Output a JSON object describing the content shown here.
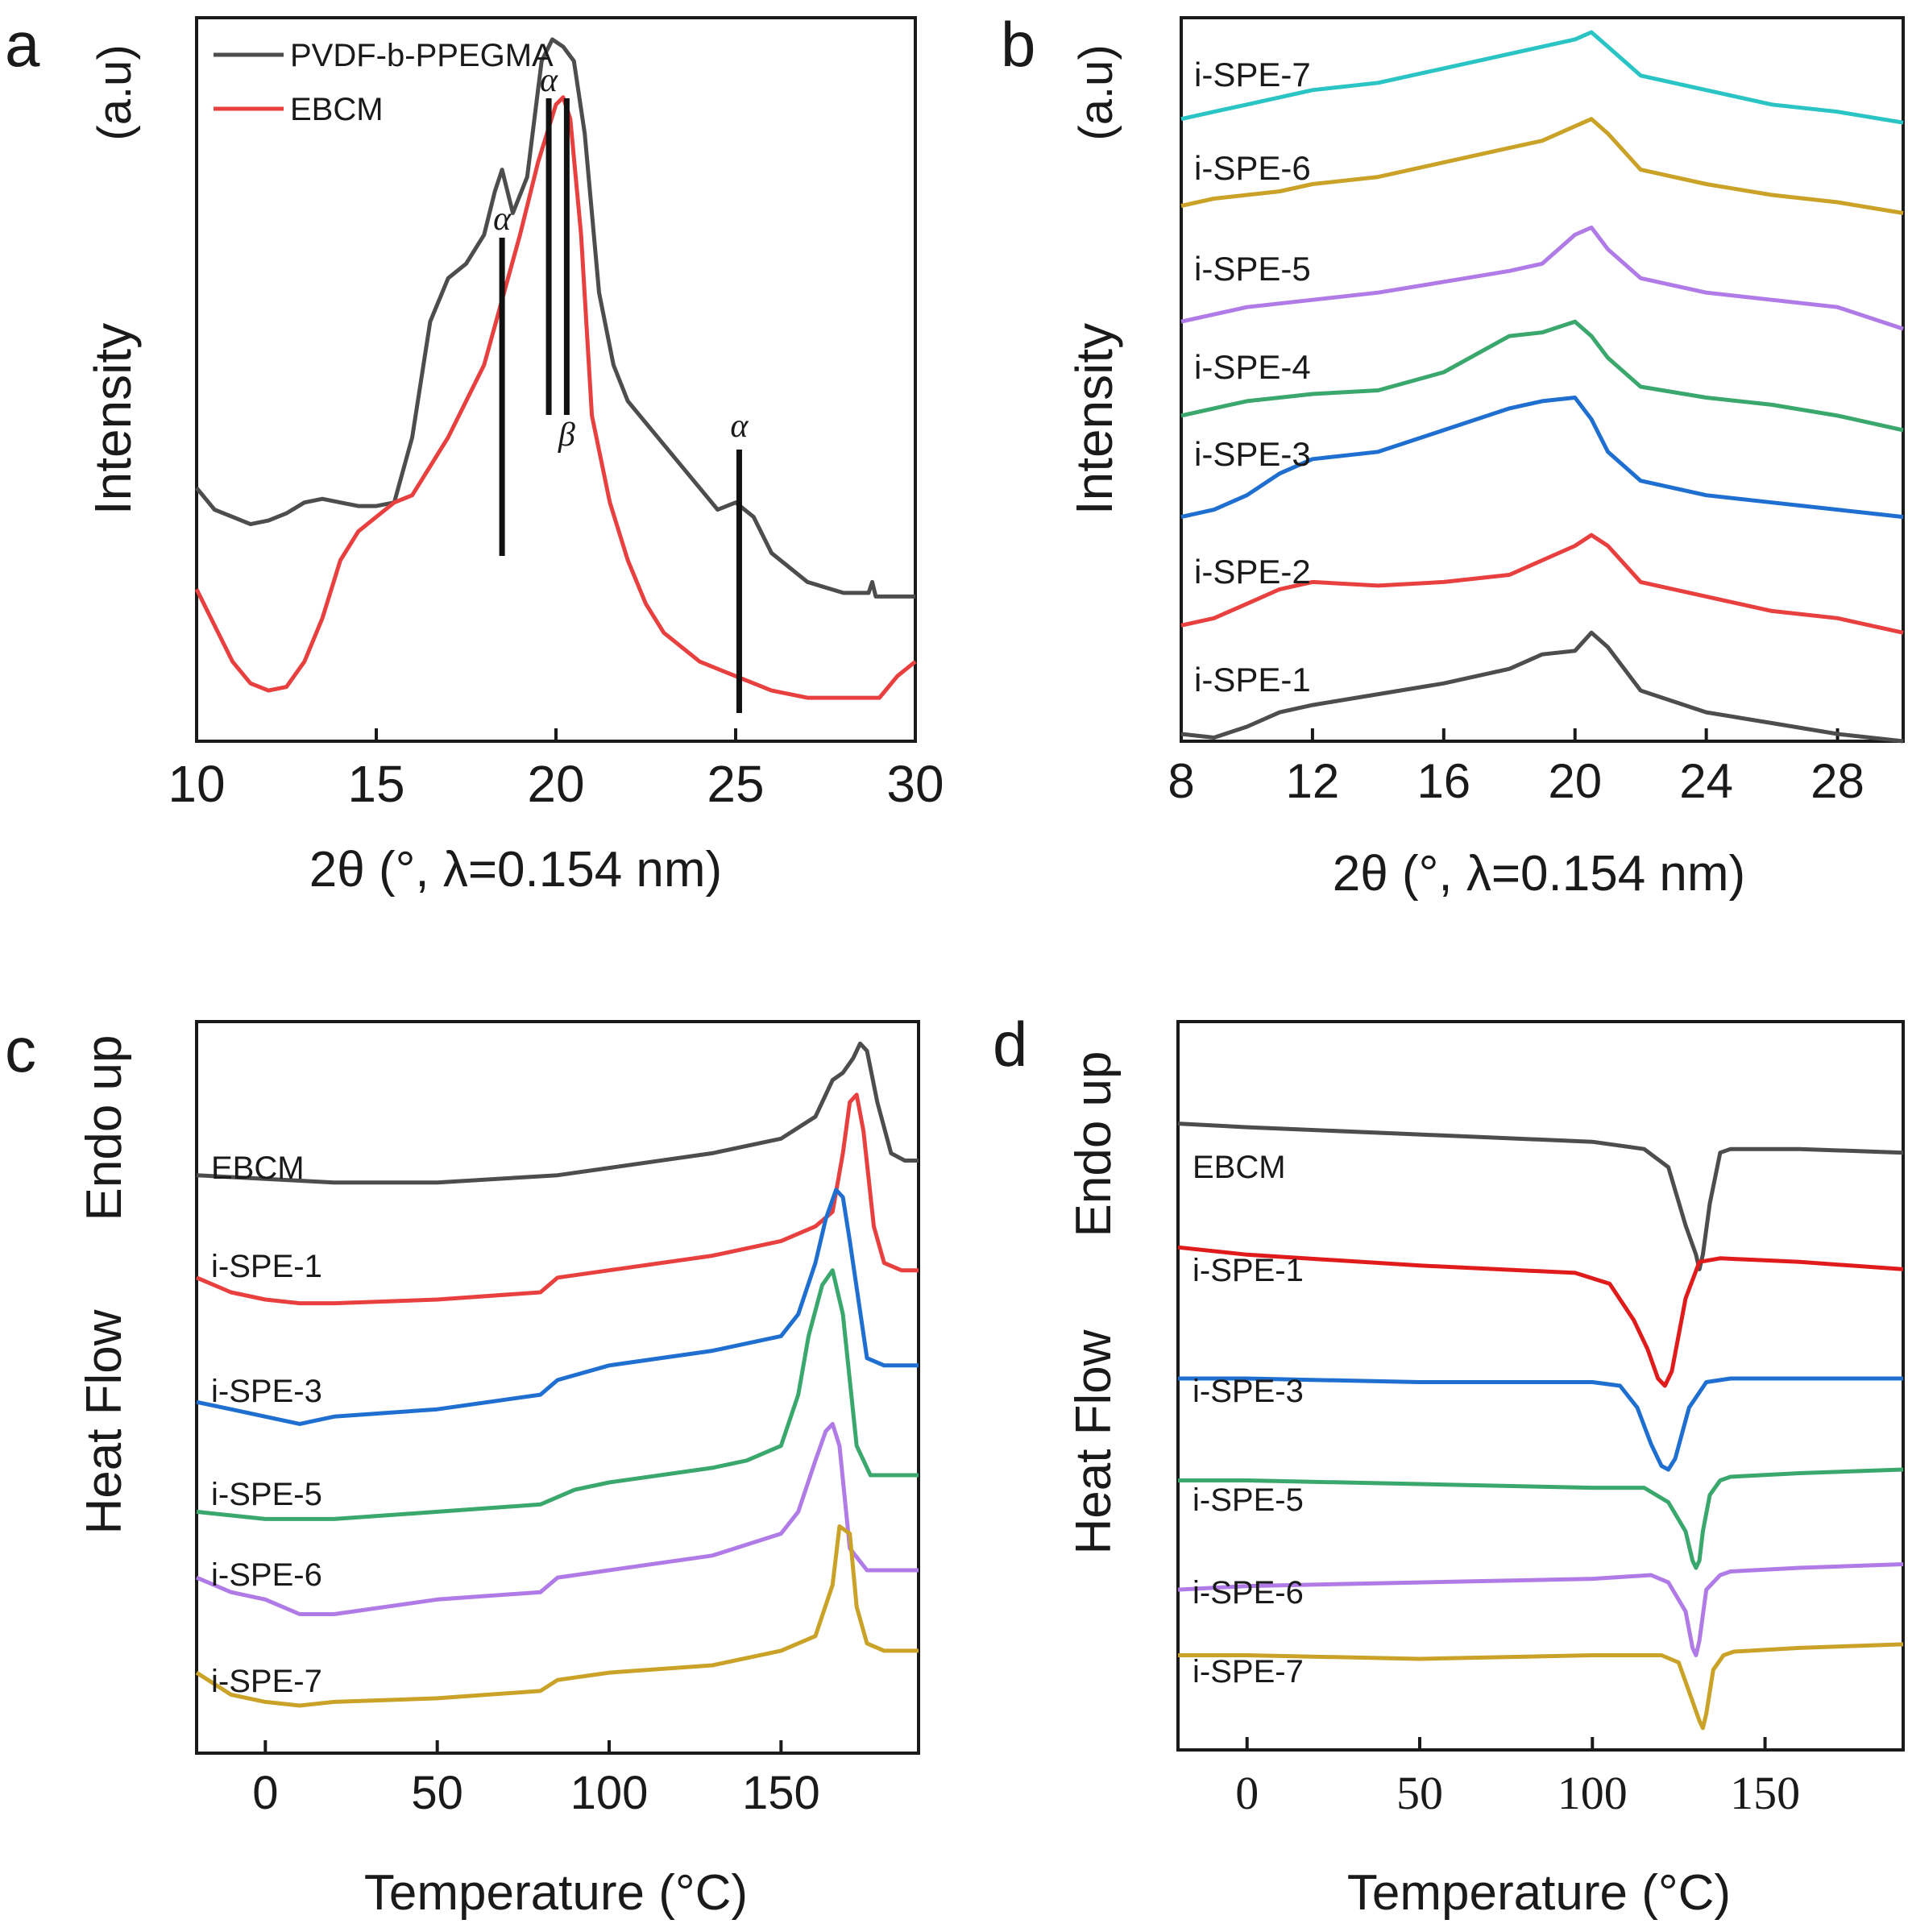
{
  "chart_data": [
    {
      "panel": "a",
      "type": "line",
      "xlabel": "2θ (°, λ=0.154 nm)",
      "ylabel": "Intensity",
      "yunit": "(a.u)",
      "xlim": [
        10,
        30
      ],
      "ylim": [
        0,
        100
      ],
      "xticks": [
        10,
        15,
        20,
        25,
        30
      ],
      "legend": {
        "position": "top-left",
        "entries": [
          "PVDF-b-PPEGMA",
          "EBCM"
        ]
      },
      "series": [
        {
          "name": "PVDF-b-PPEGMA",
          "color": "#4d4d4d",
          "x": [
            10,
            10.5,
            11,
            11.5,
            12,
            12.5,
            13,
            13.5,
            14,
            14.5,
            15,
            15.5,
            16,
            16.5,
            17,
            17.5,
            18,
            18.3,
            18.5,
            18.8,
            19.2,
            19.6,
            19.9,
            20.2,
            20.5,
            20.8,
            21.2,
            21.6,
            22,
            23,
            24,
            24.5,
            25,
            25.5,
            26,
            27,
            28,
            28.7,
            28.8,
            28.9,
            29.5,
            30
          ],
          "y": [
            35,
            32,
            31,
            30,
            30.5,
            31.5,
            33,
            33.5,
            33,
            32.5,
            32.5,
            33,
            42,
            58,
            64,
            66,
            70,
            76,
            79,
            73,
            78,
            94,
            97,
            96,
            94,
            84,
            62,
            52,
            47,
            41,
            35,
            32,
            33,
            31,
            26,
            22,
            20.5,
            20.5,
            22,
            20,
            20,
            20
          ]
        },
        {
          "name": "EBCM",
          "color": "#e8403f",
          "x": [
            10,
            10.5,
            11,
            11.5,
            12,
            12.5,
            13,
            13.5,
            14,
            14.5,
            15,
            15.5,
            16,
            16.5,
            17,
            17.5,
            18,
            18.5,
            19,
            19.5,
            20,
            20.2,
            20.4,
            20.7,
            21,
            21.5,
            22,
            22.5,
            23,
            24,
            25,
            26,
            27,
            28,
            29,
            29.5,
            30
          ],
          "y": [
            21,
            16,
            11,
            8,
            7,
            7.5,
            11,
            17,
            25,
            29,
            31,
            33,
            34,
            38,
            42,
            47,
            52,
            61,
            70,
            80,
            88,
            89,
            86,
            70,
            45,
            33,
            25,
            19,
            15,
            11,
            9,
            7,
            6,
            6,
            6,
            9,
            11
          ]
        }
      ],
      "annotations": [
        {
          "text": "α",
          "x": 18.5
        },
        {
          "text": "α",
          "x": 19.8
        },
        {
          "text": "β",
          "x": 20.3
        },
        {
          "text": "α",
          "x": 25.1
        }
      ]
    },
    {
      "panel": "b",
      "type": "line",
      "xlabel": "2θ (°, λ=0.154 nm)",
      "ylabel": "Intensity",
      "yunit": "(a.u)",
      "xlim": [
        8,
        30
      ],
      "ylim": [
        0,
        100
      ],
      "xticks": [
        8,
        12,
        16,
        20,
        24,
        28
      ],
      "series": [
        {
          "name": "i-SPE-1",
          "color": "#4d4d4d",
          "base": 0.5,
          "x": [
            8,
            9,
            10,
            11,
            12,
            14,
            16,
            18,
            19,
            20,
            20.5,
            21,
            22,
            24,
            26,
            28,
            30
          ],
          "y": [
            1,
            0.5,
            2,
            4,
            5,
            6.5,
            8,
            10,
            12,
            12.5,
            15,
            13,
            7,
            4,
            2.5,
            1,
            0
          ]
        },
        {
          "name": "i-SPE-2",
          "color": "#e8403f",
          "base": 15.5,
          "x": [
            8,
            9,
            10,
            11,
            12,
            14,
            16,
            18,
            19,
            20,
            20.5,
            21,
            22,
            24,
            26,
            28,
            30
          ],
          "y": [
            16,
            17,
            19,
            21,
            22,
            21.5,
            22,
            23,
            25,
            27,
            28.5,
            27,
            22,
            20,
            18,
            17,
            15
          ]
        },
        {
          "name": "i-SPE-3",
          "color": "#1f6fd1",
          "base": 30,
          "x": [
            8,
            9,
            10,
            11,
            12,
            14,
            16,
            18,
            19,
            20,
            20.5,
            21,
            22,
            24,
            26,
            28,
            30
          ],
          "y": [
            31,
            32,
            34,
            37,
            39,
            40,
            43,
            46,
            47,
            47.5,
            44.5,
            40,
            36,
            34,
            33,
            32,
            31
          ]
        },
        {
          "name": "i-SPE-4",
          "color": "#3aa76d",
          "base": 44,
          "x": [
            8,
            9,
            10,
            11,
            12,
            14,
            16,
            18,
            19,
            20,
            20.5,
            21,
            22,
            24,
            26,
            28,
            30
          ],
          "y": [
            45,
            46,
            47,
            47.5,
            48,
            48.5,
            51,
            56,
            56.5,
            58,
            56,
            53,
            49,
            47.5,
            46.5,
            45,
            43
          ]
        },
        {
          "name": "i-SPE-5",
          "color": "#b07be6",
          "base": 57,
          "x": [
            8,
            9,
            10,
            11,
            12,
            14,
            16,
            18,
            19,
            20,
            20.5,
            21,
            22,
            24,
            26,
            28,
            30
          ],
          "y": [
            58,
            59,
            60,
            60.5,
            61,
            62,
            63.5,
            65,
            66,
            70,
            71,
            68,
            64,
            62,
            61,
            60,
            57
          ]
        },
        {
          "name": "i-SPE-6",
          "color": "#c9a227",
          "base": 73,
          "x": [
            8,
            9,
            10,
            11,
            12,
            14,
            16,
            18,
            19,
            20,
            20.5,
            21,
            22,
            24,
            26,
            28,
            30
          ],
          "y": [
            74,
            75,
            75.5,
            76,
            77,
            78,
            80,
            82,
            83,
            85,
            86,
            84,
            79,
            77,
            75.5,
            74.5,
            73
          ]
        },
        {
          "name": "i-SPE-7",
          "color": "#2bc4c4",
          "base": 85,
          "x": [
            8,
            9,
            10,
            11,
            12,
            14,
            16,
            18,
            19,
            20,
            20.5,
            21,
            22,
            24,
            26,
            28,
            30
          ],
          "y": [
            86,
            87,
            88,
            89,
            90,
            91,
            93,
            95,
            96,
            97,
            98,
            96,
            92,
            90,
            88,
            87,
            85.5
          ]
        }
      ]
    },
    {
      "panel": "c",
      "type": "line",
      "xlabel": "Temperature (°C)",
      "ylabel": "Heat Flow",
      "ylabel_top": "Endo up",
      "xlim": [
        -20,
        190
      ],
      "ylim": [
        0,
        100
      ],
      "xticks": [
        0,
        50,
        100,
        150
      ],
      "series": [
        {
          "name": "EBCM",
          "color": "#4d4d4d",
          "x": [
            -20,
            0,
            20,
            50,
            85,
            100,
            130,
            150,
            160,
            165,
            168,
            171,
            173,
            175,
            178,
            182,
            186,
            190
          ],
          "y": [
            79,
            78.5,
            78,
            78,
            79,
            80,
            82,
            84,
            87,
            92,
            93,
            95,
            97,
            96,
            89,
            82,
            81,
            81
          ]
        },
        {
          "name": "i-SPE-1",
          "color": "#e8403f",
          "x": [
            -20,
            -10,
            0,
            10,
            20,
            50,
            80,
            85,
            100,
            130,
            150,
            160,
            165,
            168,
            170,
            172,
            174,
            177,
            180,
            185,
            190
          ],
          "y": [
            65,
            63,
            62,
            61.5,
            61.5,
            62,
            63,
            65,
            66,
            68,
            70,
            72,
            74,
            82,
            89,
            90,
            85,
            72,
            67,
            66,
            66
          ]
        },
        {
          "name": "i-SPE-3",
          "color": "#1f6fd1",
          "x": [
            -20,
            -10,
            0,
            10,
            20,
            50,
            80,
            85,
            100,
            130,
            150,
            155,
            160,
            163,
            166,
            168,
            170,
            175,
            180,
            190
          ],
          "y": [
            48,
            47,
            46,
            45,
            46,
            47,
            49,
            51,
            53,
            55,
            57,
            60,
            67,
            73,
            77,
            76,
            70,
            54,
            53,
            53
          ]
        },
        {
          "name": "i-SPE-5",
          "color": "#3aa76d",
          "x": [
            -20,
            0,
            20,
            50,
            80,
            90,
            100,
            130,
            140,
            150,
            155,
            158,
            162,
            165,
            168,
            172,
            176,
            185,
            190
          ],
          "y": [
            33,
            32,
            32,
            33,
            34,
            36,
            37,
            39,
            40,
            42,
            49,
            57,
            64,
            66,
            60,
            42,
            38,
            38,
            38
          ]
        },
        {
          "name": "i-SPE-6",
          "color": "#b07be6",
          "x": [
            -20,
            -10,
            0,
            10,
            20,
            50,
            80,
            85,
            100,
            130,
            150,
            155,
            160,
            163,
            165,
            167,
            170,
            175,
            180,
            190
          ],
          "y": [
            24,
            22,
            21,
            19,
            19,
            21,
            22,
            24,
            25,
            27,
            30,
            33,
            40,
            44,
            45,
            42,
            28,
            25,
            25,
            25
          ]
        },
        {
          "name": "i-SPE-7",
          "color": "#c9a227",
          "x": [
            -20,
            -10,
            0,
            10,
            20,
            50,
            80,
            85,
            100,
            130,
            150,
            160,
            165,
            167,
            170,
            172,
            175,
            180,
            190
          ],
          "y": [
            11,
            8,
            7,
            6.5,
            7,
            7.5,
            8.5,
            10,
            11,
            12,
            14,
            16,
            23,
            31,
            30,
            20,
            15,
            14,
            14
          ]
        }
      ],
      "labels": [
        "EBCM",
        "i-SPE-1",
        "i-SPE-3",
        "i-SPE-5",
        "i-SPE-6",
        "i-SPE-7"
      ]
    },
    {
      "panel": "d",
      "type": "line",
      "xlabel": "Temperature (°C)",
      "ylabel": "Heat Flow",
      "ylabel_top": "Endo up",
      "xlim": [
        -20,
        190
      ],
      "ylim": [
        0,
        100
      ],
      "xticks": [
        0,
        50,
        100,
        150
      ],
      "series": [
        {
          "name": "EBCM",
          "color": "#4d4d4d",
          "x": [
            -20,
            0,
            50,
            100,
            115,
            122,
            127,
            130,
            131,
            132,
            134,
            137,
            140,
            160,
            190
          ],
          "y": [
            86,
            85.5,
            84.5,
            83.5,
            82.5,
            80,
            72,
            68,
            66,
            68,
            75,
            82,
            82.5,
            82.5,
            82
          ]
        },
        {
          "name": "i-SPE-1",
          "color": "#e01b1b",
          "x": [
            -20,
            0,
            50,
            95,
            105,
            112,
            116,
            119,
            121,
            123,
            127,
            131,
            137,
            160,
            190
          ],
          "y": [
            69,
            68,
            66.5,
            65.5,
            64,
            59,
            55,
            51,
            50,
            52,
            62,
            67,
            67.5,
            67,
            66
          ]
        },
        {
          "name": "i-SPE-3",
          "color": "#1f6fd1",
          "x": [
            -20,
            0,
            50,
            100,
            108,
            113,
            117,
            120,
            122,
            124,
            128,
            133,
            140,
            160,
            190
          ],
          "y": [
            51,
            51,
            50.5,
            50.5,
            50,
            47,
            42,
            39,
            38.5,
            40,
            47,
            50.5,
            51,
            51,
            51
          ]
        },
        {
          "name": "i-SPE-5",
          "color": "#3aa76d",
          "x": [
            -20,
            0,
            50,
            100,
            115,
            122,
            127,
            129,
            130,
            131,
            132,
            134,
            137,
            140,
            160,
            190
          ],
          "y": [
            37,
            37,
            36.5,
            36,
            36,
            34,
            30,
            26,
            25,
            26,
            30,
            35,
            37,
            37.5,
            38,
            38.5
          ]
        },
        {
          "name": "i-SPE-6",
          "color": "#b07be6",
          "x": [
            -20,
            0,
            50,
            100,
            117,
            122,
            127,
            129,
            130,
            131,
            133,
            137,
            140,
            160,
            190
          ],
          "y": [
            22,
            22.5,
            23,
            23.5,
            24,
            23,
            19,
            14,
            13,
            15,
            22,
            24,
            24.5,
            25,
            25.5
          ]
        },
        {
          "name": "i-SPE-7",
          "color": "#c9a227",
          "x": [
            -20,
            0,
            50,
            100,
            120,
            125,
            128,
            131,
            132,
            133,
            135,
            138,
            141,
            160,
            190
          ],
          "y": [
            13,
            13,
            12.5,
            13,
            13,
            12,
            8,
            4,
            3,
            5,
            11,
            13,
            13.5,
            14,
            14.5
          ]
        }
      ],
      "labels": [
        "EBCM",
        "i-SPE-1",
        "i-SPE-3",
        "i-SPE-5",
        "i-SPE-6",
        "i-SPE-7"
      ]
    }
  ],
  "panel_letters": [
    "a",
    "b",
    "c",
    "d"
  ]
}
